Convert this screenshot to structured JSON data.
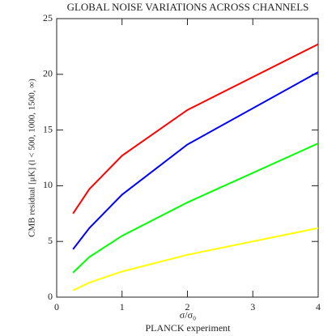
{
  "chart_data": {
    "type": "line",
    "title": "GLOBAL NOISE VARIATIONS ACROSS CHANNELS",
    "y_label": "CMB residual [μK] (l < 500, 1000, 1500, ∞)",
    "x_label": "σ/σ₀",
    "subtitle": "PLANCK experiment",
    "x": [
      0.25,
      0.5,
      1,
      2,
      4
    ],
    "series": [
      {
        "color": "#ff0000",
        "values": [
          7.5,
          9.7,
          12.7,
          16.8,
          22.7
        ]
      },
      {
        "color": "#0000ff",
        "values": [
          4.3,
          6.2,
          9.2,
          13.7,
          20.2
        ]
      },
      {
        "color": "#00ff00",
        "values": [
          2.2,
          3.6,
          5.5,
          8.5,
          13.8
        ]
      },
      {
        "color": "#ffff00",
        "values": [
          0.6,
          1.3,
          2.3,
          3.8,
          6.2
        ]
      }
    ],
    "xlim": [
      0,
      4
    ],
    "xticks": [
      0,
      1,
      2,
      3,
      4
    ],
    "ylim": [
      0,
      25
    ],
    "yticks": [
      0,
      5,
      10,
      15,
      20,
      25
    ]
  }
}
